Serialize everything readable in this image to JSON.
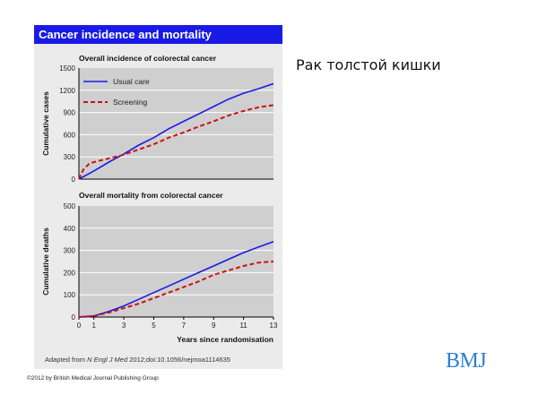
{
  "figure": {
    "header": "Cancer incidence and mortality",
    "source_prefix": "Adapted from ",
    "source_journal": "N Engl J Med",
    "source_suffix": " 2012;doi:10.1056/nejmoa1114635"
  },
  "slide": {
    "title": "Рак толстой кишки",
    "logo": "BMJ",
    "copyright": "©2012 by British Medical Journal Publishing Group"
  },
  "colors": {
    "usual_care": "#1a1ae6",
    "screening": "#cc1111",
    "plot_bg": "#cfcfcf",
    "panel_bg": "#ebebeb",
    "header_bg": "#1a1ae6",
    "grid": "#ffffff"
  },
  "chart_data": [
    {
      "type": "line",
      "title": "Overall incidence of colorectal cancer",
      "xlabel": "",
      "ylabel": "Cumulative cases",
      "xlim": [
        0,
        13
      ],
      "ylim": [
        0,
        1500
      ],
      "yticks": [
        0,
        300,
        600,
        900,
        1200,
        1500
      ],
      "yticklabels": [
        "0",
        "300",
        "600",
        "900",
        "1200",
        "1500"
      ],
      "grid": true,
      "legend": "top-left",
      "series": [
        {
          "name": "Usual care",
          "style": "solid",
          "x": [
            0,
            1,
            2,
            3,
            4,
            5,
            6,
            7,
            8,
            9,
            10,
            11,
            12,
            13
          ],
          "y": [
            0,
            110,
            230,
            340,
            460,
            560,
            680,
            780,
            880,
            980,
            1080,
            1160,
            1220,
            1290
          ]
        },
        {
          "name": "Screening",
          "style": "dashed",
          "x": [
            0,
            0.3,
            0.7,
            1,
            2,
            3,
            4,
            5,
            6,
            7,
            8,
            9,
            10,
            11,
            12,
            13
          ],
          "y": [
            0,
            130,
            210,
            230,
            280,
            330,
            400,
            470,
            560,
            630,
            710,
            780,
            860,
            920,
            970,
            1000
          ]
        }
      ]
    },
    {
      "type": "line",
      "title": "Overall mortality from colorectal cancer",
      "xlabel": "Years since randomisation",
      "ylabel": "Cumulative deaths",
      "xlim": [
        0,
        13
      ],
      "ylim": [
        0,
        500
      ],
      "xticks": [
        0,
        1,
        3,
        5,
        7,
        9,
        11,
        13
      ],
      "xticklabels": [
        "0",
        "1",
        "3",
        "5",
        "7",
        "9",
        "11",
        "13"
      ],
      "yticks": [
        0,
        100,
        200,
        300,
        400,
        500
      ],
      "yticklabels": [
        "0",
        "100",
        "200",
        "300",
        "400",
        "500"
      ],
      "grid": true,
      "series": [
        {
          "name": "Usual care",
          "style": "solid",
          "x": [
            0,
            1,
            2,
            3,
            4,
            5,
            6,
            7,
            8,
            9,
            10,
            11,
            12,
            13
          ],
          "y": [
            0,
            5,
            25,
            50,
            80,
            110,
            140,
            170,
            200,
            230,
            260,
            290,
            315,
            340
          ]
        },
        {
          "name": "Screening",
          "style": "dashed",
          "x": [
            0,
            1,
            2,
            3,
            4,
            5,
            6,
            7,
            8,
            9,
            10,
            11,
            12,
            13
          ],
          "y": [
            0,
            5,
            20,
            40,
            60,
            85,
            110,
            135,
            160,
            190,
            210,
            230,
            245,
            250
          ]
        }
      ]
    }
  ]
}
